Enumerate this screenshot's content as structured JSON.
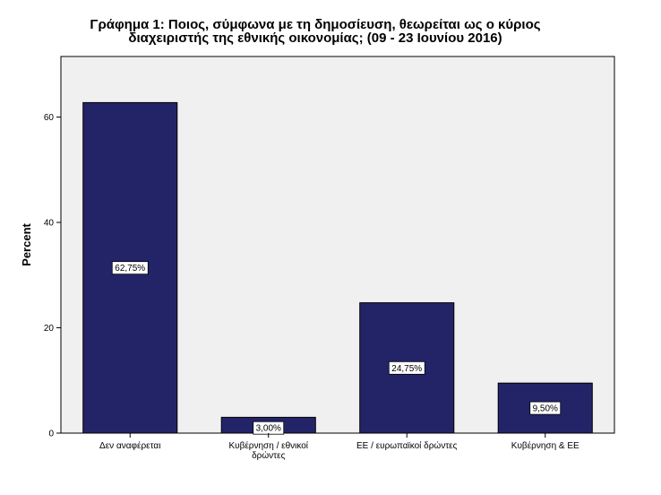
{
  "chart_data": {
    "type": "bar",
    "title_lines": [
      "Γράφημα 1: Ποιος, σύμφωνα με τη δημοσίευση, θεωρείται ως ο κύριος",
      "διαχειριστής της εθνικής οικονομίας; (09 - 23 Ιουνίου 2016)"
    ],
    "ylabel": "Percent",
    "xlabel": "",
    "categories": [
      [
        "Δεν αναφέρεται"
      ],
      [
        "Κυβέρνηση / εθνικοί",
        "δρώντες"
      ],
      [
        "ΕΕ / ευρωπαϊκοί δρώντες"
      ],
      [
        "Κυβέρνηση & ΕΕ"
      ]
    ],
    "values": [
      62.75,
      3.0,
      24.75,
      9.5
    ],
    "data_labels": [
      "62,75%",
      "3,00%",
      "24,75%",
      "9,50%"
    ],
    "ylim": [
      0,
      71.5
    ],
    "yticks": [
      0,
      20,
      40,
      60
    ],
    "grid": false,
    "colors": {
      "bar": "#232468",
      "plot_bg": "#f0f0f0",
      "axis": "#000000"
    }
  }
}
